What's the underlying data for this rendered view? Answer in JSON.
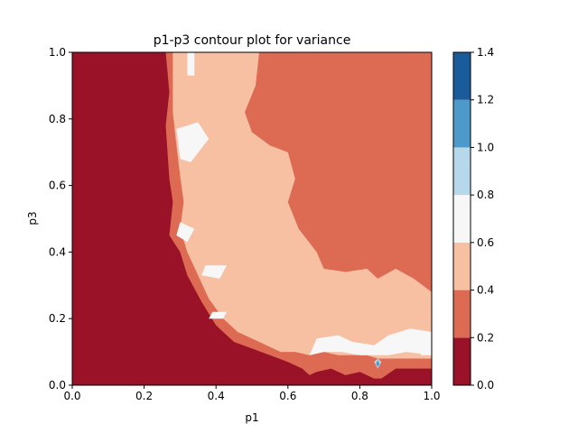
{
  "chart_data": {
    "type": "heatmap",
    "title": "p1-p3 contour plot for variance",
    "xlabel": "p1",
    "ylabel": "p3",
    "xlim": [
      0.0,
      1.0
    ],
    "ylim": [
      0.0,
      1.0
    ],
    "xticks": [
      "0.0",
      "0.2",
      "0.4",
      "0.6",
      "0.8",
      "1.0"
    ],
    "yticks": [
      "0.0",
      "0.2",
      "0.4",
      "0.6",
      "0.8",
      "1.0"
    ],
    "colorbar": {
      "levels": [
        0.0,
        0.2,
        0.4,
        0.6,
        0.8,
        1.0,
        1.2,
        1.4
      ],
      "ticklabels": [
        "0.0",
        "0.2",
        "0.4",
        "0.6",
        "0.8",
        "1.0",
        "1.2",
        "1.4"
      ],
      "colors": [
        "#9a1227",
        "#dd6a53",
        "#f7c0a3",
        "#f7f7f7",
        "#b7d8ea",
        "#4b9ac9",
        "#1a5b9b"
      ]
    },
    "regions": [
      {
        "level": "0.0-0.2",
        "polygon": [
          [
            0,
            0
          ],
          [
            0,
            1
          ],
          [
            0.26,
            1
          ],
          [
            0.27,
            0.88
          ],
          [
            0.26,
            0.78
          ],
          [
            0.27,
            0.62
          ],
          [
            0.28,
            0.55
          ],
          [
            0.27,
            0.45
          ],
          [
            0.3,
            0.4
          ],
          [
            0.32,
            0.33
          ],
          [
            0.36,
            0.25
          ],
          [
            0.4,
            0.18
          ],
          [
            0.45,
            0.13
          ],
          [
            0.5,
            0.11
          ],
          [
            0.55,
            0.09
          ],
          [
            0.6,
            0.07
          ],
          [
            0.64,
            0.05
          ],
          [
            0.66,
            0.03
          ],
          [
            0.68,
            0.04
          ],
          [
            0.72,
            0.05
          ],
          [
            0.76,
            0.03
          ],
          [
            0.8,
            0.04
          ],
          [
            0.84,
            0.02
          ],
          [
            0.86,
            0.02
          ],
          [
            0.9,
            0.05
          ],
          [
            1,
            0.05
          ],
          [
            1,
            0
          ]
        ]
      },
      {
        "level": "0.2-0.4",
        "polygon": [
          [
            0.26,
            1
          ],
          [
            0.27,
            0.88
          ],
          [
            0.26,
            0.78
          ],
          [
            0.27,
            0.62
          ],
          [
            0.28,
            0.55
          ],
          [
            0.27,
            0.45
          ],
          [
            0.3,
            0.4
          ],
          [
            0.32,
            0.33
          ],
          [
            0.36,
            0.25
          ],
          [
            0.4,
            0.18
          ],
          [
            0.45,
            0.13
          ],
          [
            0.5,
            0.11
          ],
          [
            0.55,
            0.09
          ],
          [
            0.6,
            0.07
          ],
          [
            0.64,
            0.05
          ],
          [
            0.66,
            0.03
          ],
          [
            0.68,
            0.04
          ],
          [
            0.72,
            0.05
          ],
          [
            0.76,
            0.03
          ],
          [
            0.8,
            0.04
          ],
          [
            0.84,
            0.02
          ],
          [
            0.86,
            0.02
          ],
          [
            0.9,
            0.05
          ],
          [
            1,
            0.05
          ],
          [
            1,
            1
          ]
        ]
      },
      {
        "level": "0.4-0.6",
        "polygon": [
          [
            0.28,
            1
          ],
          [
            0.52,
            1
          ],
          [
            0.51,
            0.9
          ],
          [
            0.48,
            0.82
          ],
          [
            0.5,
            0.76
          ],
          [
            0.55,
            0.72
          ],
          [
            0.6,
            0.7
          ],
          [
            0.62,
            0.62
          ],
          [
            0.6,
            0.55
          ],
          [
            0.63,
            0.47
          ],
          [
            0.68,
            0.4
          ],
          [
            0.7,
            0.35
          ],
          [
            0.76,
            0.34
          ],
          [
            0.82,
            0.35
          ],
          [
            0.85,
            0.32
          ],
          [
            0.9,
            0.35
          ],
          [
            0.95,
            0.32
          ],
          [
            1,
            0.28
          ],
          [
            1,
            0.08
          ],
          [
            0.92,
            0.08
          ],
          [
            0.88,
            0.08
          ],
          [
            0.85,
            0.08
          ],
          [
            0.82,
            0.09
          ],
          [
            0.78,
            0.09
          ],
          [
            0.74,
            0.09
          ],
          [
            0.7,
            0.1
          ],
          [
            0.66,
            0.09
          ],
          [
            0.62,
            0.1
          ],
          [
            0.58,
            0.1
          ],
          [
            0.54,
            0.12
          ],
          [
            0.5,
            0.14
          ],
          [
            0.46,
            0.16
          ],
          [
            0.42,
            0.2
          ],
          [
            0.38,
            0.26
          ],
          [
            0.35,
            0.33
          ],
          [
            0.32,
            0.4
          ],
          [
            0.3,
            0.47
          ],
          [
            0.31,
            0.55
          ],
          [
            0.3,
            0.63
          ],
          [
            0.29,
            0.72
          ],
          [
            0.28,
            0.82
          ],
          [
            0.28,
            0.92
          ]
        ]
      },
      {
        "level": "0.6-0.8",
        "polygon": [
          [
            0.29,
            0.77
          ],
          [
            0.35,
            0.79
          ],
          [
            0.38,
            0.74
          ],
          [
            0.33,
            0.67
          ],
          [
            0.3,
            0.68
          ]
        ]
      },
      {
        "level": "0.6-0.8",
        "polygon": [
          [
            0.32,
            1
          ],
          [
            0.34,
            1
          ],
          [
            0.34,
            0.93
          ],
          [
            0.32,
            0.93
          ]
        ]
      },
      {
        "level": "0.6-0.8",
        "polygon": [
          [
            0.3,
            0.49
          ],
          [
            0.34,
            0.47
          ],
          [
            0.32,
            0.43
          ],
          [
            0.29,
            0.45
          ]
        ]
      },
      {
        "level": "0.6-0.8",
        "polygon": [
          [
            0.37,
            0.36
          ],
          [
            0.43,
            0.36
          ],
          [
            0.41,
            0.32
          ],
          [
            0.36,
            0.33
          ]
        ]
      },
      {
        "level": "0.6-0.8",
        "polygon": [
          [
            0.39,
            0.22
          ],
          [
            0.43,
            0.22
          ],
          [
            0.42,
            0.2
          ],
          [
            0.38,
            0.2
          ]
        ]
      },
      {
        "level": "0.6-0.8",
        "polygon": [
          [
            0.66,
            0.09
          ],
          [
            0.68,
            0.14
          ],
          [
            0.74,
            0.15
          ],
          [
            0.78,
            0.13
          ],
          [
            0.84,
            0.12
          ],
          [
            0.88,
            0.15
          ],
          [
            0.94,
            0.17
          ],
          [
            1,
            0.16
          ],
          [
            1,
            0.09
          ],
          [
            0.93,
            0.1
          ],
          [
            0.88,
            0.09
          ],
          [
            0.84,
            0.09
          ],
          [
            0.8,
            0.09
          ],
          [
            0.75,
            0.1
          ],
          [
            0.7,
            0.1
          ]
        ]
      },
      {
        "level": "0.6-0.8",
        "polygon": [
          [
            0.97,
            0.1
          ],
          [
            1,
            0.11
          ],
          [
            1,
            0.09
          ],
          [
            0.97,
            0.09
          ]
        ]
      },
      {
        "level": "0.8-1.0",
        "polygon": [
          [
            0.84,
            0.07
          ],
          [
            0.85,
            0.08
          ],
          [
            0.86,
            0.07
          ],
          [
            0.85,
            0.05
          ]
        ]
      },
      {
        "level": "1.0-1.2",
        "polygon": [
          [
            0.845,
            0.065
          ],
          [
            0.85,
            0.075
          ],
          [
            0.855,
            0.065
          ],
          [
            0.85,
            0.055
          ]
        ]
      }
    ]
  }
}
